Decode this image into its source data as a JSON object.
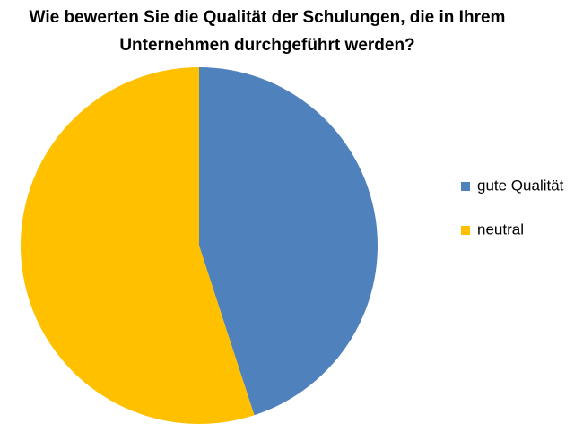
{
  "chart_data": {
    "type": "pie",
    "title": [
      "Wie bewerten Sie die Qualität der Schulungen, die in Ihrem",
      "Unternehmen durchgeführt werden?"
    ],
    "categories": [
      "gute Qualität",
      "neutral"
    ],
    "values": [
      45,
      55
    ],
    "colors": [
      "#4f81bd",
      "#ffc000"
    ],
    "legend": "right"
  }
}
